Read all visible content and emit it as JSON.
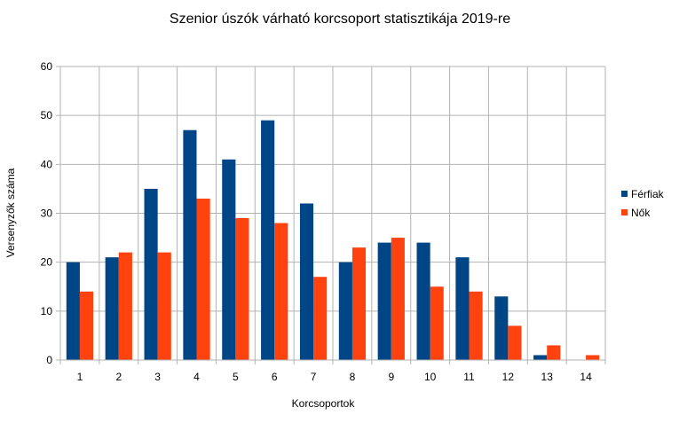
{
  "chart_data": {
    "type": "bar",
    "title": "Szenior úszók várható korcsoport statisztikája 2019-re",
    "xlabel": "Korcsoportok",
    "ylabel": "Versenyzők száma",
    "categories": [
      "1",
      "2",
      "3",
      "4",
      "5",
      "6",
      "7",
      "8",
      "9",
      "10",
      "11",
      "12",
      "13",
      "14"
    ],
    "series": [
      {
        "name": "Férfiak",
        "color": "#004586",
        "values": [
          20,
          21,
          35,
          47,
          41,
          49,
          32,
          20,
          24,
          24,
          21,
          13,
          1,
          0
        ]
      },
      {
        "name": "Nők",
        "color": "#ff420e",
        "values": [
          14,
          22,
          22,
          33,
          29,
          28,
          17,
          23,
          25,
          15,
          14,
          7,
          3,
          1
        ]
      }
    ],
    "ylim": [
      0,
      60
    ],
    "yticks": [
      "0",
      "10",
      "20",
      "30",
      "40",
      "50",
      "60"
    ],
    "grid": true,
    "legend": "right"
  }
}
